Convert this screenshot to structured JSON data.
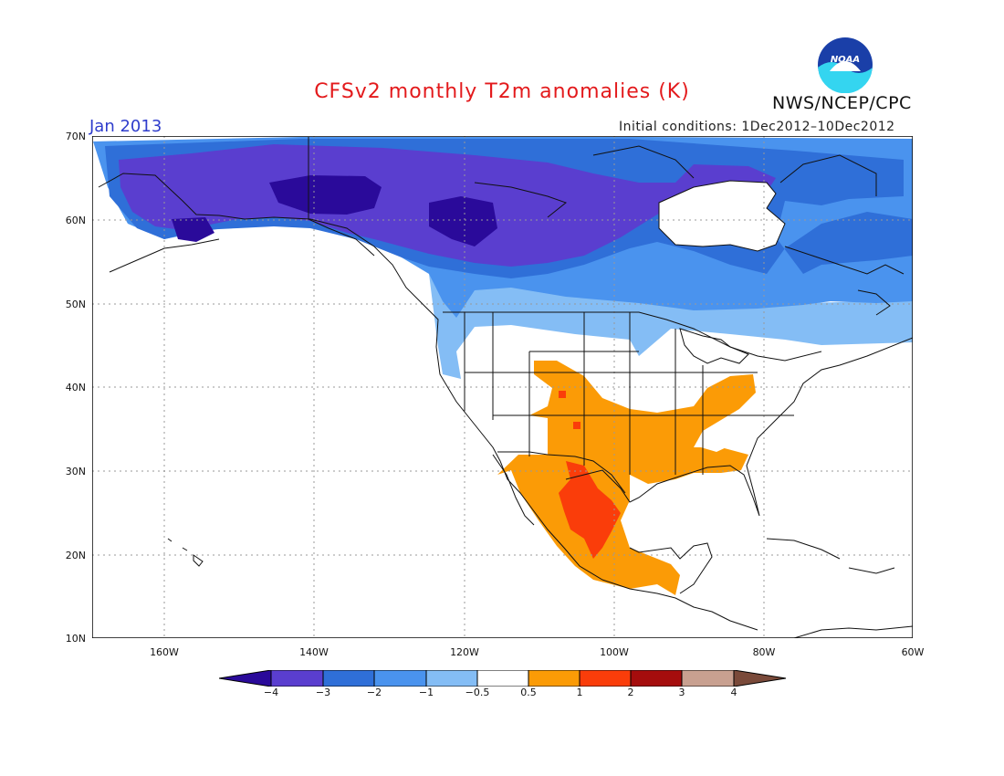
{
  "header": {
    "title": "CFSv2 monthly T2m anomalies (K)",
    "month": "Jan 2013",
    "initial_conditions": "Initial conditions: 1Dec2012–10Dec2012",
    "organization": "NWS/NCEP/CPC",
    "logo_text": "NOAA"
  },
  "axes": {
    "lat_labels": [
      "70N",
      "60N",
      "50N",
      "40N",
      "30N",
      "20N",
      "10N"
    ],
    "lon_labels": [
      "160W",
      "140W",
      "120W",
      "100W",
      "80W",
      "60W"
    ]
  },
  "colorbar": {
    "labels": [
      "−4",
      "−3",
      "−2",
      "−1",
      "−0.5",
      "0.5",
      "1",
      "2",
      "3",
      "4"
    ],
    "colors": [
      "#2a0a9a",
      "#5a3ecf",
      "#2f6fd8",
      "#4a93ee",
      "#84bdf5",
      "#ffffff",
      "#fb9b06",
      "#fa3d0a",
      "#a50d0d",
      "#c8a090",
      "#7a4a3a"
    ]
  },
  "map_colors": {
    "land_outline": "#111111",
    "frame": "#000000",
    "grid": "#888888"
  }
}
